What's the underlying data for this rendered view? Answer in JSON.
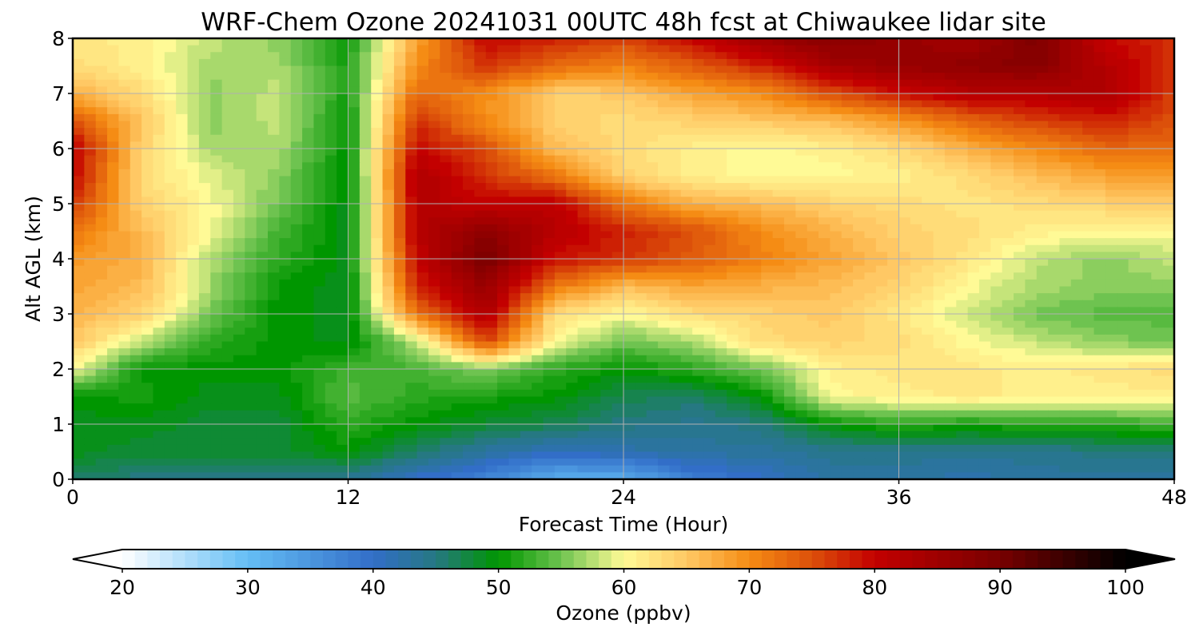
{
  "chart_data": {
    "type": "heatmap",
    "title": "WRF-Chem Ozone  20241031 00UTC 48h fcst at Chiwaukee lidar site",
    "xlabel": "Forecast Time (Hour)",
    "ylabel": "Alt AGL (km)",
    "xlim": [
      0,
      48
    ],
    "ylim": [
      0,
      8
    ],
    "x_ticks": [
      "0",
      "12",
      "24",
      "36",
      "48"
    ],
    "y_ticks": [
      "0",
      "1",
      "2",
      "3",
      "4",
      "5",
      "6",
      "7",
      "8"
    ],
    "grid": true,
    "colorbar": {
      "label": "Ozone  (ppbv)",
      "range": [
        20,
        100
      ],
      "ticks": [
        "20",
        "30",
        "40",
        "50",
        "60",
        "70",
        "80",
        "90",
        "100"
      ],
      "extend": "both",
      "placement": "bottom"
    },
    "x": [
      0,
      3,
      6,
      9,
      12,
      15,
      18,
      21,
      24,
      27,
      30,
      33,
      36,
      39,
      42,
      45,
      48
    ],
    "y": [
      0,
      0.5,
      1,
      1.5,
      2,
      2.5,
      3,
      3.5,
      4,
      4.5,
      5,
      5.5,
      6,
      6.5,
      7,
      7.5,
      8
    ],
    "z": [
      [
        46,
        45,
        45,
        44,
        44,
        40,
        37,
        32,
        32,
        38,
        40,
        43,
        43,
        42,
        43,
        43,
        43
      ],
      [
        49,
        48,
        48,
        48,
        50,
        46,
        43,
        41,
        42,
        43,
        43,
        44,
        44,
        44,
        44,
        45,
        45
      ],
      [
        49,
        49,
        48,
        48,
        52,
        50,
        48,
        47,
        45,
        44,
        45,
        50,
        52,
        51,
        52,
        52,
        53
      ],
      [
        50,
        51,
        49,
        49,
        54,
        52,
        51,
        50,
        47,
        46,
        50,
        60,
        61,
        62,
        61,
        61,
        61
      ],
      [
        60,
        50,
        50,
        50,
        53,
        53,
        56,
        52,
        50,
        52,
        55,
        61,
        62,
        62,
        61,
        62,
        63
      ],
      [
        65,
        58,
        52,
        50,
        49,
        58,
        76,
        60,
        55,
        57,
        63,
        64,
        63,
        60,
        58,
        56,
        55
      ],
      [
        67,
        64,
        55,
        50,
        49,
        72,
        83,
        63,
        60,
        63,
        64,
        65,
        62,
        58,
        55,
        54,
        54
      ],
      [
        68,
        66,
        57,
        50,
        49,
        78,
        86,
        72,
        66,
        68,
        67,
        66,
        64,
        60,
        57,
        56,
        56
      ],
      [
        69,
        67,
        57,
        52,
        49,
        80,
        90,
        79,
        77,
        74,
        71,
        68,
        65,
        62,
        58,
        56,
        58
      ],
      [
        72,
        66,
        60,
        53,
        49,
        82,
        87,
        82,
        78,
        75,
        70,
        67,
        64,
        63,
        61,
        60,
        60
      ],
      [
        77,
        64,
        60,
        55,
        49,
        82,
        80,
        81,
        72,
        67,
        66,
        64,
        63,
        62,
        63,
        64,
        65
      ],
      [
        80,
        63,
        59,
        56,
        49,
        83,
        77,
        72,
        64,
        61,
        60,
        60,
        61,
        63,
        66,
        68,
        68
      ],
      [
        81,
        64,
        57,
        57,
        50,
        80,
        75,
        66,
        63,
        61,
        60,
        61,
        63,
        67,
        70,
        73,
        73
      ],
      [
        75,
        65,
        56,
        58,
        50,
        77,
        70,
        64,
        63,
        64,
        65,
        66,
        69,
        73,
        76,
        78,
        75
      ],
      [
        67,
        63,
        56,
        58,
        51,
        73,
        70,
        64,
        65,
        68,
        70,
        75,
        79,
        82,
        82,
        83,
        76
      ],
      [
        63,
        61,
        57,
        57,
        51,
        70,
        77,
        73,
        71,
        74,
        78,
        84,
        86,
        87,
        88,
        82,
        77
      ],
      [
        62,
        61,
        58,
        56,
        51,
        68,
        80,
        78,
        76,
        80,
        85,
        88,
        86,
        84,
        89,
        80,
        77
      ]
    ]
  }
}
